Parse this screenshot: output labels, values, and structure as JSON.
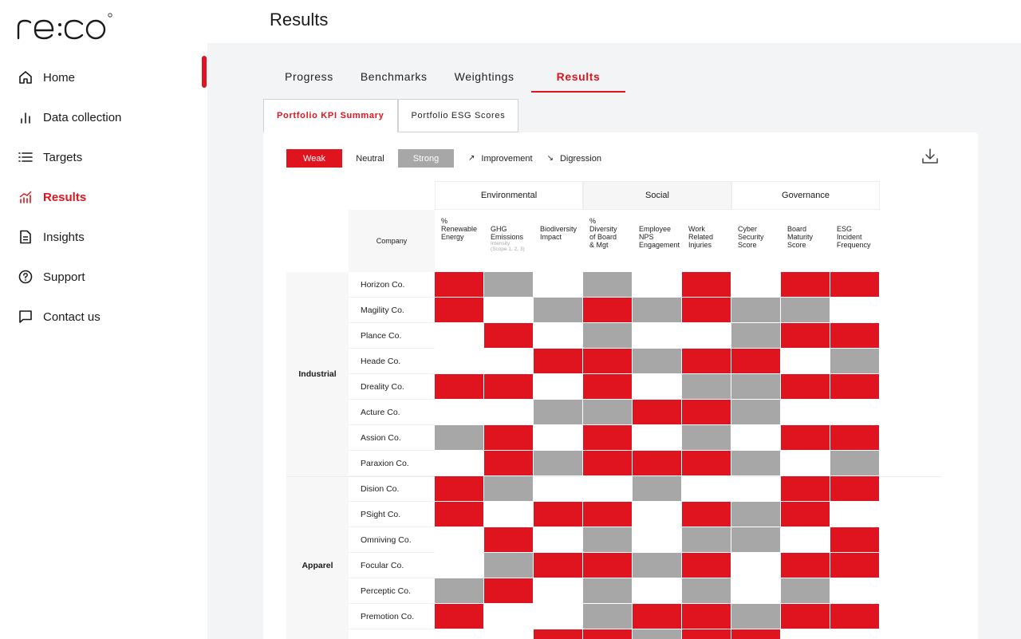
{
  "brand": {
    "logo_text": "re:co",
    "accent": "#e0141e",
    "strong_color": "#a7a7a7"
  },
  "page_title": "Results",
  "sidebar": {
    "items": [
      {
        "label": "Home",
        "icon": "home-icon",
        "active": false
      },
      {
        "label": "Data collection",
        "icon": "bar-chart-icon",
        "active": false
      },
      {
        "label": "Targets",
        "icon": "list-icon",
        "active": false
      },
      {
        "label": "Results",
        "icon": "trend-chart-icon",
        "active": true
      },
      {
        "label": "Insights",
        "icon": "document-icon",
        "active": false
      },
      {
        "label": "Support",
        "icon": "help-circle-icon",
        "active": false
      },
      {
        "label": "Contact us",
        "icon": "chat-icon",
        "active": false
      }
    ]
  },
  "tabs": [
    {
      "label": "Progress",
      "active": false
    },
    {
      "label": "Benchmarks",
      "active": false
    },
    {
      "label": "Weightings",
      "active": false
    },
    {
      "label": "Results",
      "active": true
    }
  ],
  "subtabs": [
    {
      "label": "Portfolio KPI Summary",
      "active": true
    },
    {
      "label": "Portfolio ESG Scores",
      "active": false
    }
  ],
  "legend": {
    "weak": "Weak",
    "neutral": "Neutral",
    "strong": "Strong",
    "improvement": "Improvement",
    "digression": "Digression"
  },
  "groups": [
    "Environmental",
    "Social",
    "Governance"
  ],
  "company_header": "Company",
  "columns": [
    {
      "lines": [
        "%",
        "Renewable",
        "Energy"
      ],
      "sub": []
    },
    {
      "lines": [
        "GHG",
        "Emissions"
      ],
      "sub": [
        "Intensity",
        "(Scope 1, 2, 3)"
      ]
    },
    {
      "lines": [
        "Biodiversity",
        "Impact"
      ],
      "sub": []
    },
    {
      "lines": [
        "%",
        "Diversity",
        "of Board",
        "& Mgt"
      ],
      "sub": []
    },
    {
      "lines": [
        "Employee",
        "NPS",
        "Engagement"
      ],
      "sub": []
    },
    {
      "lines": [
        "Work",
        "Related",
        "Injuries"
      ],
      "sub": []
    },
    {
      "lines": [
        "Cyber",
        "Security",
        "Score"
      ],
      "sub": []
    },
    {
      "lines": [
        "Board",
        "Maturity",
        "Score"
      ],
      "sub": []
    },
    {
      "lines": [
        "ESG",
        "Incident",
        "Frequency"
      ],
      "sub": []
    }
  ],
  "sectors": [
    {
      "name": "Industrial",
      "rows": [
        {
          "company": "Horizon Co.",
          "values": [
            "weak",
            "strong",
            "neutral",
            "strong",
            "neutral",
            "weak",
            "neutral",
            "weak",
            "weak"
          ]
        },
        {
          "company": "Magility Co.",
          "values": [
            "weak",
            "neutral",
            "strong",
            "weak",
            "strong",
            "weak",
            "strong",
            "strong",
            "neutral"
          ]
        },
        {
          "company": "Plance Co.",
          "values": [
            "neutral",
            "weak",
            "neutral",
            "strong",
            "neutral",
            "neutral",
            "strong",
            "weak",
            "weak"
          ]
        },
        {
          "company": "Heade Co.",
          "values": [
            "neutral",
            "neutral",
            "weak",
            "weak",
            "strong",
            "weak",
            "weak",
            "neutral",
            "strong"
          ]
        },
        {
          "company": "Dreality Co.",
          "values": [
            "weak",
            "weak",
            "neutral",
            "weak",
            "neutral",
            "strong",
            "strong",
            "weak",
            "weak"
          ]
        },
        {
          "company": "Acture Co.",
          "values": [
            "neutral",
            "neutral",
            "strong",
            "strong",
            "weak",
            "weak",
            "strong",
            "neutral",
            "neutral"
          ]
        },
        {
          "company": "Assion Co.",
          "values": [
            "strong",
            "weak",
            "neutral",
            "weak",
            "neutral",
            "strong",
            "neutral",
            "weak",
            "weak"
          ]
        },
        {
          "company": "Paraxion Co.",
          "values": [
            "neutral",
            "weak",
            "strong",
            "weak",
            "weak",
            "weak",
            "strong",
            "neutral",
            "strong"
          ]
        }
      ]
    },
    {
      "name": "Apparel",
      "rows": [
        {
          "company": "Dision Co.",
          "values": [
            "weak",
            "strong",
            "neutral",
            "neutral",
            "strong",
            "neutral",
            "neutral",
            "weak",
            "weak"
          ]
        },
        {
          "company": "PSight Co.",
          "values": [
            "weak",
            "neutral",
            "weak",
            "weak",
            "neutral",
            "weak",
            "strong",
            "weak",
            "neutral"
          ]
        },
        {
          "company": "Omniving Co.",
          "values": [
            "neutral",
            "weak",
            "neutral",
            "strong",
            "neutral",
            "strong",
            "strong",
            "neutral",
            "weak"
          ]
        },
        {
          "company": "Focular Co.",
          "values": [
            "neutral",
            "strong",
            "weak",
            "weak",
            "strong",
            "weak",
            "neutral",
            "weak",
            "weak"
          ]
        },
        {
          "company": "Perceptic Co.",
          "values": [
            "strong",
            "weak",
            "neutral",
            "strong",
            "neutral",
            "strong",
            "neutral",
            "strong",
            "neutral"
          ]
        },
        {
          "company": "Premotion Co.",
          "values": [
            "weak",
            "neutral",
            "neutral",
            "strong",
            "weak",
            "weak",
            "strong",
            "weak",
            "weak"
          ]
        },
        {
          "company": "",
          "values": [
            "neutral",
            "neutral",
            "weak",
            "weak",
            "strong",
            "weak",
            "weak",
            "neutral",
            "neutral"
          ]
        }
      ]
    }
  ]
}
